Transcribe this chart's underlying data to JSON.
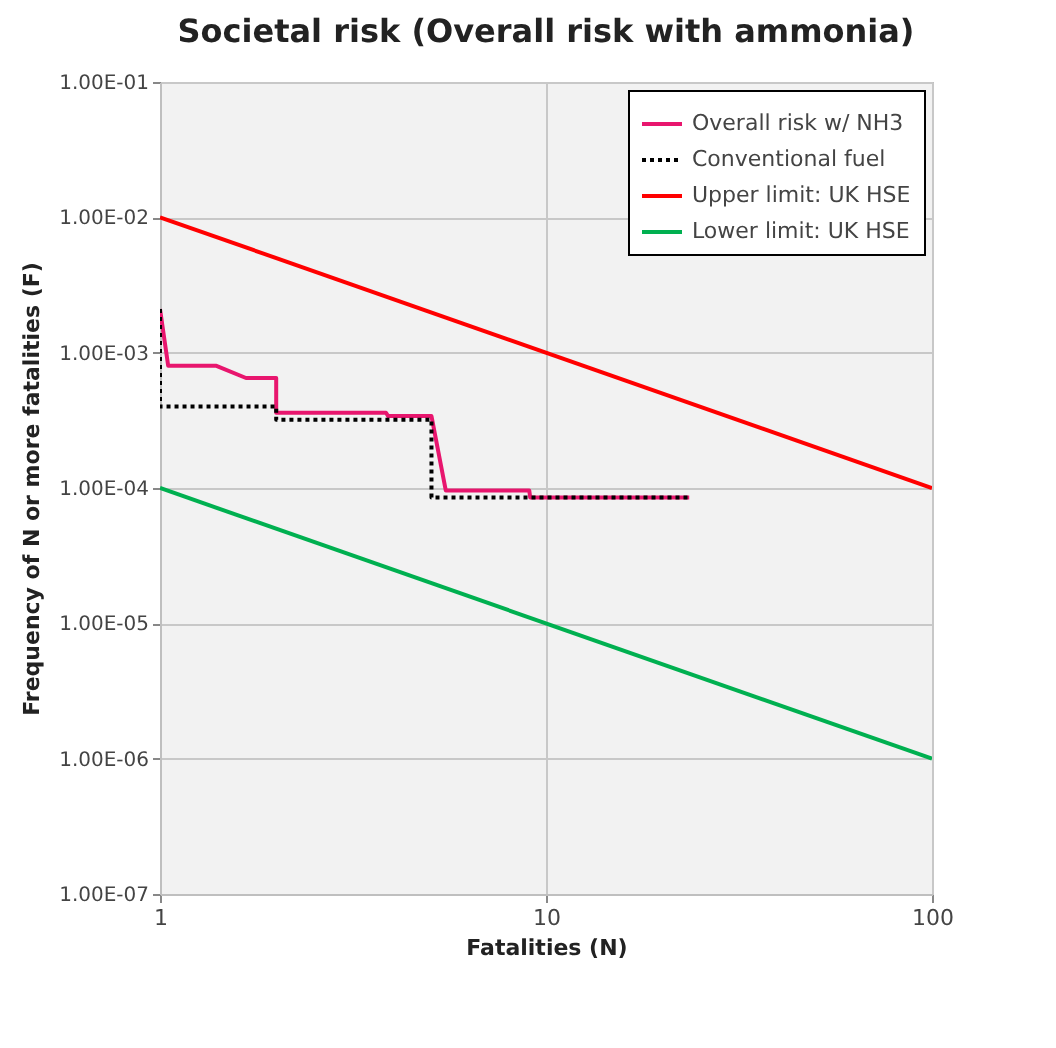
{
  "chart_data": {
    "type": "line",
    "title": "Societal risk (Overall risk with ammonia)",
    "xlabel": "Fatalities (N)",
    "ylabel": "Frequency of N or more fatalities (F)",
    "log": "xy",
    "grid": true,
    "legend": "top right",
    "xlim": [
      1,
      100
    ],
    "ylim": [
      1e-07,
      0.1
    ],
    "xticks": [
      1,
      10,
      100
    ],
    "yticks": [
      {
        "value": 1e-07,
        "label": "1.00E-07"
      },
      {
        "value": 1e-06,
        "label": "1.00E-06"
      },
      {
        "value": 1e-05,
        "label": "1.00E-05"
      },
      {
        "value": 0.0001,
        "label": "1.00E-04"
      },
      {
        "value": 0.001,
        "label": "1.00E-03"
      },
      {
        "value": 0.01,
        "label": "1.00E-02"
      },
      {
        "value": 0.1,
        "label": "1.00E-01"
      }
    ],
    "series": [
      {
        "name": "Overall risk w/ NH3",
        "color": "#e8166e",
        "line_style": "solid",
        "x": [
          1,
          1.05,
          1.4,
          1.67,
          2,
          2,
          3.85,
          3.9,
          5.05,
          5.5,
          9.05,
          9.1,
          23.5
        ],
        "values": [
          0.0021,
          0.0008,
          0.0008,
          0.00065,
          0.00065,
          0.00036,
          0.00036,
          0.00034,
          0.00034,
          9.6e-05,
          9.6e-05,
          8.5e-05,
          8.5e-05
        ]
      },
      {
        "name": "Conventional fuel",
        "color": "#000000",
        "line_style": "dotted",
        "x": [
          1,
          1,
          2,
          2,
          5.05,
          5.05,
          23.5
        ],
        "values": [
          0.0021,
          0.0004,
          0.0004,
          0.00032,
          0.00032,
          8.5e-05,
          8.5e-05
        ]
      },
      {
        "name": "Upper limit: UK HSE",
        "color": "#ff0000",
        "line_style": "solid",
        "x": [
          1,
          100
        ],
        "values": [
          0.01,
          0.0001
        ]
      },
      {
        "name": "Lower limit: UK HSE",
        "color": "#00b050",
        "line_style": "solid",
        "x": [
          1,
          100
        ],
        "values": [
          0.0001,
          1e-06
        ]
      }
    ]
  }
}
